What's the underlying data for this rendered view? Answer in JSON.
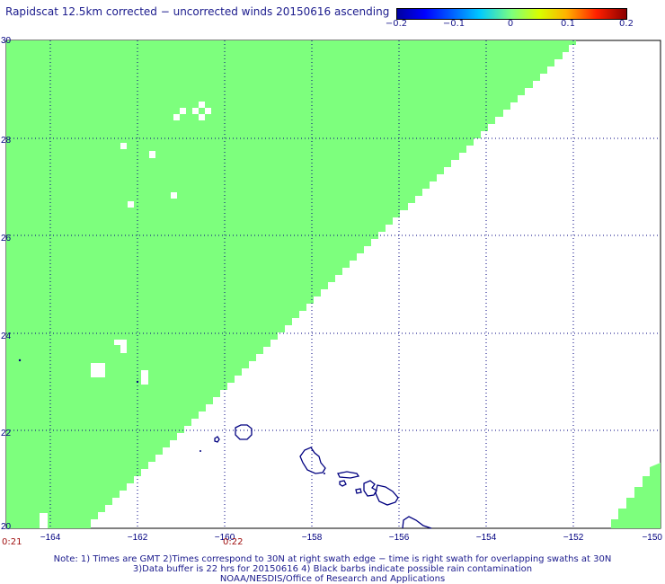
{
  "title": "Rapidscat 12.5km corrected − uncorrected winds 20150616 ascending",
  "colorbar": {
    "ticks": [
      "−0.2",
      "−0.1",
      "0",
      "0.1",
      "0.2"
    ],
    "colors": [
      "#0000a0",
      "#0000ff",
      "#00c8ff",
      "#7dff7d",
      "#ffb000",
      "#ff2000",
      "#8b0000"
    ]
  },
  "map": {
    "lon_ticks": [
      "−164",
      "−162",
      "−160",
      "−158",
      "−156",
      "−154",
      "−152",
      "−150"
    ],
    "lat_ticks": [
      "30",
      "28",
      "26",
      "24",
      "22",
      "20"
    ],
    "lon_range": [
      -165,
      -150
    ],
    "lat_range": [
      20,
      30
    ],
    "swath_color": "#7dff7d",
    "coast_color": "#000080",
    "grid_color": "#000080"
  },
  "times": [
    "0:21",
    "0:22"
  ],
  "notes": [
    "Note: 1) Times are GMT 2)Times correspond to 30N at right swath edge − time is right swath for overlapping swaths at 30N",
    "3)Data buffer is 22 hrs for 20150616 4) Black barbs indicate possible rain contamination",
    "NOAA/NESDIS/Office of Research and Applications"
  ]
}
